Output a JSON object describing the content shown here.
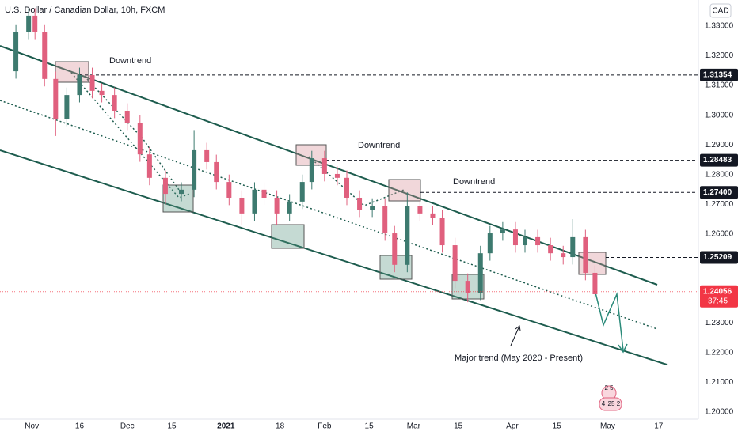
{
  "chart_data": {
    "type": "candlestick",
    "title": "U.S. Dollar / Canadian Dollar, 10h, FXCM",
    "currency": "CAD",
    "x": [
      -5,
      -1,
      1,
      4,
      7.5,
      11,
      15,
      19,
      22,
      26,
      30,
      34,
      37,
      42,
      47,
      51,
      55,
      58,
      62,
      66,
      70,
      73,
      77,
      81,
      85,
      88,
      92,
      96,
      99,
      103,
      107,
      111,
      114,
      118,
      122,
      126,
      129,
      133,
      137,
      141,
      144,
      148,
      152,
      155,
      159,
      163,
      167,
      170,
      174,
      177
    ],
    "open": [
      1.3148,
      1.3281,
      1.3335,
      1.3281,
      1.3122,
      1.2988,
      1.3068,
      1.3135,
      1.3082,
      1.3068,
      1.3015,
      1.2975,
      1.2868,
      1.2789,
      1.2735,
      1.2749,
      1.2882,
      1.2842,
      1.2775,
      1.2722,
      1.2669,
      1.2749,
      1.2722,
      1.2669,
      1.2709,
      1.2775,
      1.2855,
      1.2802,
      1.2789,
      1.2722,
      1.2682,
      1.2695,
      1.2602,
      1.2496,
      1.2695,
      1.2669,
      1.2655,
      1.2562,
      1.2442,
      1.2402,
      1.2535,
      1.2602,
      1.2615,
      1.2562,
      1.2589,
      1.2562,
      1.2535,
      1.2522,
      1.2589,
      1.2469
    ],
    "high": [
      1.3306,
      1.336,
      1.336,
      1.3306,
      1.3147,
      1.3093,
      1.316,
      1.316,
      1.3107,
      1.3093,
      1.304,
      1.3,
      1.2893,
      1.2814,
      1.2774,
      1.295,
      1.2907,
      1.2867,
      1.28,
      1.2747,
      1.2774,
      1.2774,
      1.2747,
      1.2734,
      1.28,
      1.288,
      1.288,
      1.2827,
      1.2814,
      1.2747,
      1.272,
      1.272,
      1.2627,
      1.274,
      1.272,
      1.2694,
      1.268,
      1.2587,
      1.2467,
      1.256,
      1.2627,
      1.264,
      1.264,
      1.2614,
      1.2614,
      1.2587,
      1.256,
      1.265,
      1.2614,
      1.2494
    ],
    "low": [
      1.3123,
      1.3256,
      1.3256,
      1.3097,
      1.293,
      1.2963,
      1.3043,
      1.3057,
      1.3043,
      1.299,
      1.295,
      1.2843,
      1.2764,
      1.27,
      1.271,
      1.2724,
      1.2817,
      1.275,
      1.2697,
      1.263,
      1.2644,
      1.2697,
      1.263,
      1.2644,
      1.2684,
      1.275,
      1.2777,
      1.2764,
      1.2697,
      1.2657,
      1.2657,
      1.2577,
      1.2471,
      1.2471,
      1.2644,
      1.263,
      1.2537,
      1.2417,
      1.237,
      1.2377,
      1.251,
      1.2577,
      1.2537,
      1.2537,
      1.2537,
      1.251,
      1.2497,
      1.2497,
      1.2444,
      1.238
    ],
    "close": [
      1.3281,
      1.3335,
      1.3281,
      1.3122,
      1.2988,
      1.3068,
      1.3135,
      1.3082,
      1.3068,
      1.3015,
      1.2975,
      1.2868,
      1.2789,
      1.2735,
      1.2749,
      1.2882,
      1.2842,
      1.2775,
      1.2722,
      1.2669,
      1.2749,
      1.2722,
      1.2669,
      1.2709,
      1.2775,
      1.2855,
      1.2802,
      1.2789,
      1.2722,
      1.2682,
      1.2695,
      1.2602,
      1.2496,
      1.2695,
      1.2669,
      1.2655,
      1.2562,
      1.2442,
      1.2402,
      1.2535,
      1.2602,
      1.2615,
      1.2562,
      1.2589,
      1.2562,
      1.2535,
      1.2522,
      1.2589,
      1.2469,
      1.2397
    ],
    "up_color": "#3d7a6f",
    "down_color": "#e0607e",
    "xlim": [
      -10,
      209
    ],
    "ylim": [
      1.1976,
      1.3388
    ],
    "xticks": [
      {
        "value": 0,
        "label": "Nov"
      },
      {
        "value": 15,
        "label": "16"
      },
      {
        "value": 30,
        "label": "Dec"
      },
      {
        "value": 44,
        "label": "15"
      },
      {
        "value": 61,
        "label": "2021"
      },
      {
        "value": 78,
        "label": "18"
      },
      {
        "value": 92,
        "label": "Feb"
      },
      {
        "value": 106,
        "label": "15"
      },
      {
        "value": 120,
        "label": "Mar"
      },
      {
        "value": 134,
        "label": "15"
      },
      {
        "value": 151,
        "label": "Apr"
      },
      {
        "value": 165,
        "label": "15"
      },
      {
        "value": 181,
        "label": "May"
      },
      {
        "value": 197,
        "label": "17"
      }
    ],
    "yticks": [
      {
        "value": 1.33,
        "label": "1.33000"
      },
      {
        "value": 1.32,
        "label": "1.32000"
      },
      {
        "value": 1.31,
        "label": "1.31000"
      },
      {
        "value": 1.3,
        "label": "1.30000"
      },
      {
        "value": 1.29,
        "label": "1.29000"
      },
      {
        "value": 1.28,
        "label": "1.28000"
      },
      {
        "value": 1.27,
        "label": "1.27000"
      },
      {
        "value": 1.26,
        "label": "1.26000"
      },
      {
        "value": 1.23,
        "label": "1.23000"
      },
      {
        "value": 1.22,
        "label": "1.22000"
      },
      {
        "value": 1.21,
        "label": "1.21000"
      },
      {
        "value": 1.2,
        "label": "1.20000"
      }
    ],
    "levels": [
      1.31354,
      1.28483,
      {
        "value": 1.274,
        "label": "1.27400"
      },
      1.25209
    ],
    "level_color": "#131722",
    "last_price": 1.24056,
    "countdown": "37:45",
    "last_color": "#f23645",
    "annotations": [
      "Downtrend",
      "Downtrend",
      "Downtrend",
      "Major trend (May 2020 - Present)"
    ],
    "widget_labels": [
      "2 5",
      "4",
      "25",
      "2"
    ]
  }
}
